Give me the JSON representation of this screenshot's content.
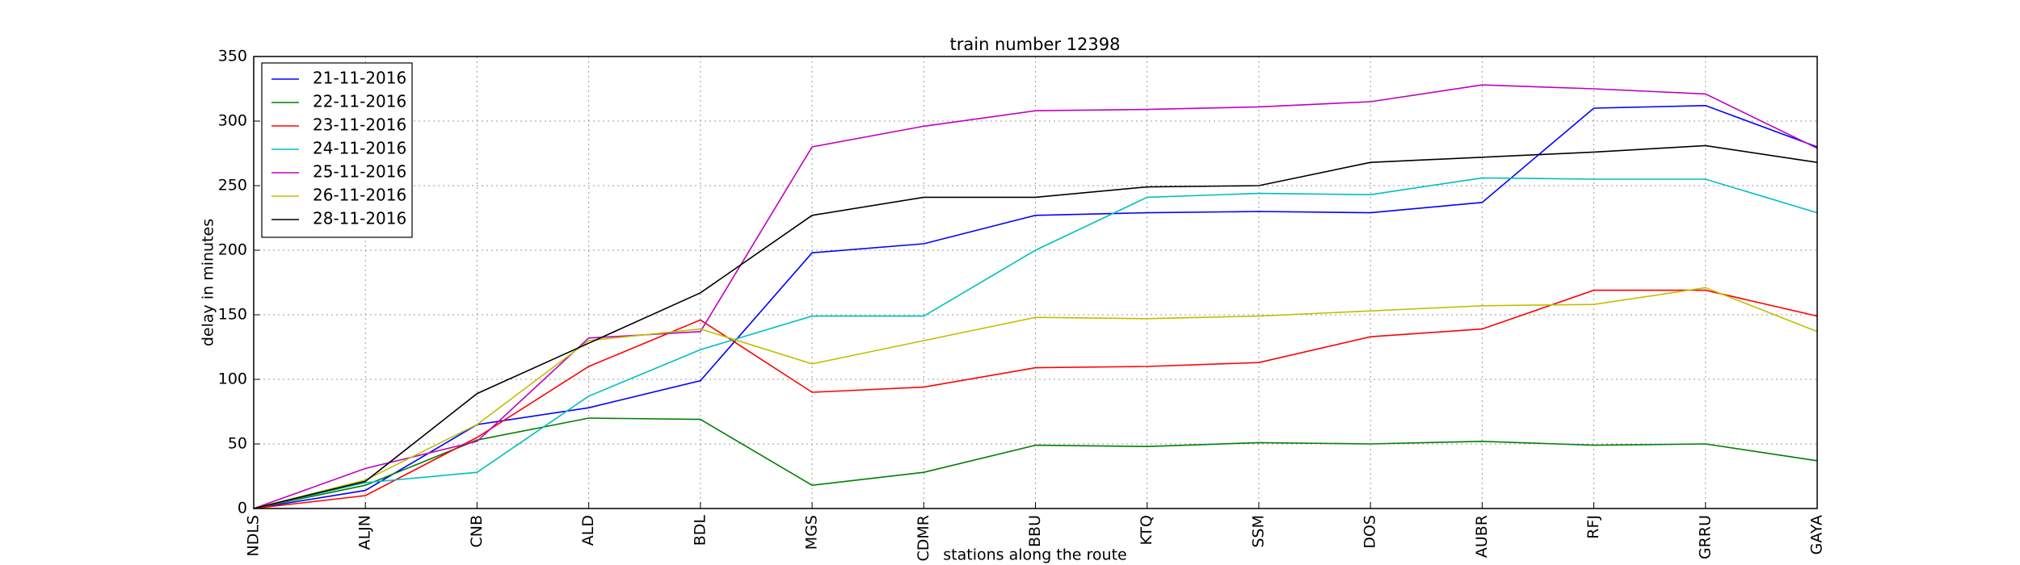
{
  "chart_data": {
    "type": "line",
    "title": "train number 12398",
    "x_label": "stations along the route",
    "y_label": "delay in minutes",
    "categories": [
      "NDLS",
      "ALJN",
      "CNB",
      "ALD",
      "BDL",
      "MGS",
      "CDMR",
      "BBU",
      "KTQ",
      "SSM",
      "DOS",
      "AUBR",
      "RFJ",
      "GRRU",
      "GAYA"
    ],
    "series": [
      {
        "name": "21-11-2016",
        "color": "#0000ff",
        "values": [
          0,
          14,
          65,
          78,
          99,
          198,
          205,
          227,
          229,
          230,
          229,
          237,
          310,
          312,
          280
        ]
      },
      {
        "name": "22-11-2016",
        "color": "#008000",
        "values": [
          0,
          18,
          53,
          70,
          69,
          18,
          28,
          49,
          48,
          51,
          50,
          52,
          49,
          50,
          37
        ]
      },
      {
        "name": "23-11-2016",
        "color": "#ff0000",
        "values": [
          0,
          10,
          55,
          110,
          146,
          90,
          94,
          109,
          110,
          113,
          133,
          139,
          169,
          169,
          149
        ]
      },
      {
        "name": "24-11-2016",
        "color": "#00bfbf",
        "values": [
          0,
          20,
          28,
          87,
          123,
          149,
          149,
          200,
          241,
          244,
          243,
          256,
          255,
          255,
          229
        ]
      },
      {
        "name": "25-11-2016",
        "color": "#bf00bf",
        "values": [
          0,
          31,
          52,
          132,
          137,
          280,
          296,
          308,
          309,
          311,
          315,
          328,
          325,
          321,
          279
        ]
      },
      {
        "name": "26-11-2016",
        "color": "#bfbf00",
        "values": [
          0,
          22,
          65,
          130,
          139,
          112,
          130,
          148,
          147,
          149,
          153,
          157,
          158,
          171,
          137
        ]
      },
      {
        "name": "28-11-2016",
        "color": "#000000",
        "values": [
          0,
          21,
          89,
          128,
          167,
          227,
          241,
          241,
          249,
          250,
          268,
          272,
          276,
          281,
          268
        ]
      }
    ],
    "ylim": [
      0,
      350
    ],
    "yticks": [
      0,
      50,
      100,
      150,
      200,
      250,
      300,
      350
    ],
    "grid": true,
    "legend": "upper-left"
  }
}
